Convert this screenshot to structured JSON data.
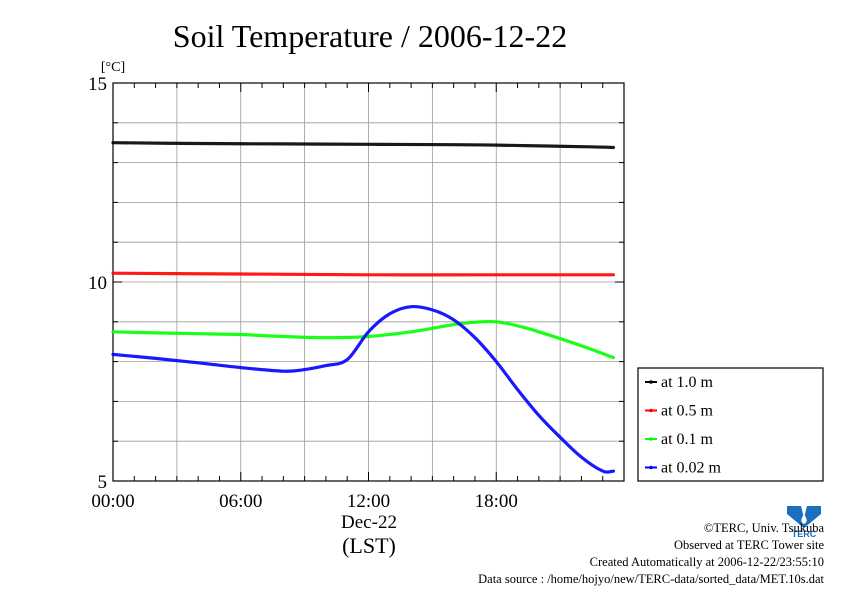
{
  "chart_data": {
    "type": "line",
    "title": "Soil Temperature / 2006-12-22",
    "ylabel": "[°C]",
    "ylim": [
      5,
      15
    ],
    "yticks": [
      5,
      10,
      15
    ],
    "xlim": [
      0,
      24
    ],
    "xticks": [
      {
        "value": 0,
        "label": "00:00"
      },
      {
        "value": 6,
        "label": "06:00"
      },
      {
        "value": 12,
        "label": "12:00"
      },
      {
        "value": 18,
        "label": "18:00"
      }
    ],
    "xlabel_date": "Dec-22",
    "xlabel": "(LST)",
    "grid": true,
    "legend_position": "right",
    "series": [
      {
        "name": "at 1.0 m",
        "color": "#000000",
        "x": [
          0,
          4,
          8,
          12,
          16,
          18,
          20,
          22,
          23.5
        ],
        "y": [
          13.5,
          13.48,
          13.47,
          13.46,
          13.45,
          13.44,
          13.42,
          13.4,
          13.38
        ]
      },
      {
        "name": "at 0.5 m",
        "color": "#ff0000",
        "x": [
          0,
          6,
          12,
          18,
          23.5
        ],
        "y": [
          10.22,
          10.2,
          10.18,
          10.18,
          10.18
        ]
      },
      {
        "name": "at 0.1 m",
        "color": "#00ff00",
        "x": [
          0,
          2,
          4,
          6,
          8,
          10,
          12,
          14,
          16,
          17,
          18,
          19,
          20,
          22,
          23.5
        ],
        "y": [
          8.75,
          8.72,
          8.7,
          8.68,
          8.63,
          8.6,
          8.63,
          8.75,
          8.93,
          8.99,
          9.0,
          8.9,
          8.75,
          8.4,
          8.1
        ]
      },
      {
        "name": "at 0.02 m",
        "color": "#0000ff",
        "x": [
          0,
          2,
          4,
          6,
          8,
          9,
          10,
          11,
          12,
          13,
          14,
          15,
          16,
          17,
          18,
          19,
          20,
          21,
          22,
          23,
          23.5
        ],
        "y": [
          8.18,
          8.08,
          7.97,
          7.85,
          7.76,
          7.8,
          7.9,
          8.05,
          8.75,
          9.2,
          9.38,
          9.3,
          9.05,
          8.6,
          8.0,
          7.3,
          6.65,
          6.1,
          5.6,
          5.25,
          5.25
        ]
      }
    ]
  },
  "credits": {
    "copyright": "©TERC, Univ. Tsukuba",
    "observed": "Observed at TERC Tower site",
    "created": "Created Automatically at 2006-12-22/23:55:10",
    "source": "Data source : /home/hojyo/new/TERC-data/sorted_data/MET.10s.dat"
  },
  "logo": {
    "name": "terc-logo-icon",
    "text": "TERC",
    "color": "#1a6fc0"
  }
}
